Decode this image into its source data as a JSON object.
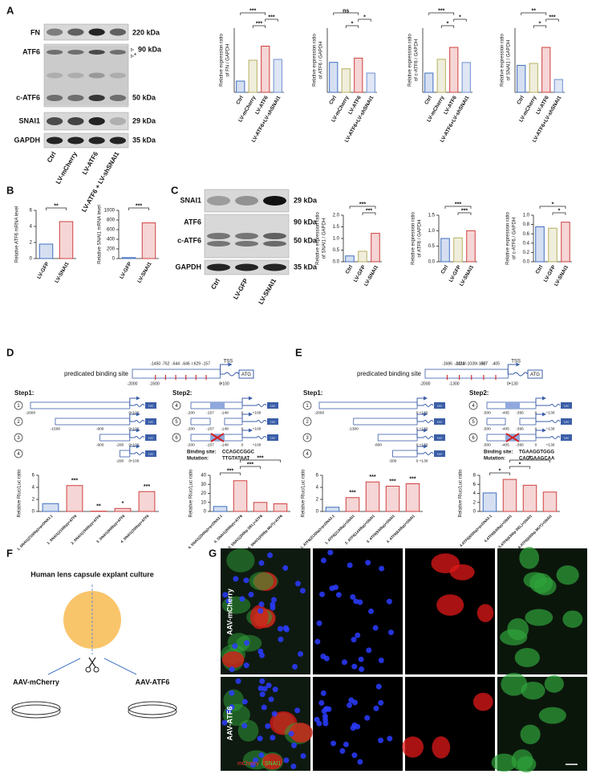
{
  "panel_labels": [
    "A",
    "B",
    "C",
    "D",
    "E",
    "F",
    "G"
  ],
  "blot_A": {
    "proteins": [
      "FN",
      "ATF6",
      "c-ATF6",
      "SNAI1",
      "GAPDH"
    ],
    "sizes": [
      "220 kDa",
      "90 kDa",
      "50 kDa",
      "29 kDa",
      "35 kDa"
    ],
    "markers": [
      "▹",
      "▹*"
    ],
    "lanes": [
      "Ctrl",
      "LV-mCherry",
      "LV-ATF6",
      "LV-ATF6 + LV-shSNAI1"
    ]
  },
  "blot_C": {
    "proteins": [
      "SNAI1",
      "ATF6",
      "c-ATF6",
      "GAPDH"
    ],
    "sizes": [
      "29 kDa",
      "90 kDa",
      "50 kDa",
      "35 kDa"
    ],
    "lanes": [
      "Ctrl",
      "LV-GFP",
      "LV-SNAI1"
    ]
  },
  "charts": [
    {
      "type": "bar",
      "ylabel": [
        "Relative expression ratio",
        "of FN / GAPDH"
      ],
      "categories": [
        "Ctrl",
        "LV-mCherry",
        "LV-ATF6",
        "LV-ATF6+LV-shSNAI1"
      ],
      "values": [
        0.28,
        0.8,
        1.15,
        0.82
      ],
      "colors": [
        "#3f6fbf",
        "#b8b060",
        "#d04040",
        "#6f8fcf"
      ],
      "ylim": [
        0,
        1.6
      ],
      "brackets": [
        {
          "between": [
            1,
            2
          ],
          "label": "***"
        },
        {
          "between": [
            2,
            3
          ],
          "label": "***"
        },
        {
          "between": [
            0,
            2
          ],
          "label": "***"
        }
      ]
    },
    {
      "type": "bar",
      "ylabel": [
        "Relative expression ratio",
        "of ATF6 / GAPDH"
      ],
      "categories": [
        "Ctrl",
        "LV-mCherry",
        "LV-ATF6",
        "LV-ATF6+LV-shSNAI1"
      ],
      "values": [
        0.28,
        0.22,
        0.32,
        0.18
      ],
      "colors": [
        "#3f6fbf",
        "#b8b060",
        "#d04040",
        "#6f8fcf"
      ],
      "ylim": [
        0,
        0.6
      ],
      "brackets": [
        {
          "between": [
            1,
            2
          ],
          "label": "*"
        },
        {
          "between": [
            2,
            3
          ],
          "label": "*"
        },
        {
          "between": [
            0,
            2
          ],
          "label": "ns"
        }
      ]
    },
    {
      "type": "bar",
      "ylabel": [
        "Relative expression ratio",
        "of c-ATF6 / GAPDH"
      ],
      "categories": [
        "Ctrl",
        "LV-mCherry",
        "LV-ATF6",
        "LV-ATF6+LV-shSNAI1"
      ],
      "values": [
        0.42,
        0.72,
        0.98,
        0.65
      ],
      "colors": [
        "#3f6fbf",
        "#b8b060",
        "#d04040",
        "#6f8fcf"
      ],
      "ylim": [
        0,
        1.4
      ],
      "brackets": [
        {
          "between": [
            1,
            2
          ],
          "label": "*"
        },
        {
          "between": [
            2,
            3
          ],
          "label": "*"
        },
        {
          "between": [
            0,
            2
          ],
          "label": "***"
        }
      ]
    },
    {
      "type": "bar",
      "ylabel": [
        "Relative expression ratio",
        "of SNAI1 / GAPDH"
      ],
      "categories": [
        "Ctrl",
        "LV-mCherry",
        "LV-ATF6",
        "LV-ATF6+LV-shSNAI1"
      ],
      "values": [
        0.42,
        0.45,
        0.7,
        0.2
      ],
      "colors": [
        "#3f6fbf",
        "#b8b060",
        "#d04040",
        "#6f8fcf"
      ],
      "ylim": [
        0,
        1.0
      ],
      "brackets": [
        {
          "between": [
            1,
            2
          ],
          "label": "*"
        },
        {
          "between": [
            2,
            3
          ],
          "label": "***"
        },
        {
          "between": [
            0,
            2
          ],
          "label": "**"
        }
      ]
    },
    {
      "type": "bar",
      "ylabel": [
        "Relative ATF6 mRNA level"
      ],
      "categories": [
        "LV-GFP",
        "LV-SNAI1"
      ],
      "values": [
        1.8,
        4.6
      ],
      "colors": [
        "#3f6fbf",
        "#d04040"
      ],
      "ylim": [
        0,
        6
      ],
      "yticks": [
        0,
        2,
        4,
        6
      ],
      "brackets": [
        {
          "between": [
            0,
            1
          ],
          "label": "**"
        }
      ]
    },
    {
      "type": "bar",
      "ylabel": [
        "Relative SNAI1 mRNA level"
      ],
      "categories": [
        "LV-GFP",
        "LV-SNAI1"
      ],
      "values": [
        20,
        740
      ],
      "colors": [
        "#3f6fbf",
        "#d04040"
      ],
      "ylim": [
        0,
        1000
      ],
      "yticks": [
        0,
        200,
        400,
        600,
        800,
        1000
      ],
      "brackets": [
        {
          "between": [
            0,
            1
          ],
          "label": "***"
        }
      ]
    },
    {
      "type": "bar",
      "ylabel": [
        "Relative expression ratio",
        "of SNAI1 / GAPDH"
      ],
      "categories": [
        "Ctrl",
        "LV-GFP",
        "LV-SNAI1"
      ],
      "values": [
        0.25,
        0.45,
        1.22
      ],
      "colors": [
        "#3f6fbf",
        "#b8b060",
        "#d04040"
      ],
      "ylim": [
        0,
        2
      ],
      "yticks": [
        {
          "value": 0,
          "label": "0.0"
        },
        0.5,
        {
          "value": 1,
          "label": "1.0"
        },
        1.5,
        {
          "value": 2,
          "label": "2.0"
        }
      ],
      "brackets": [
        {
          "between": [
            1,
            2
          ],
          "label": "***"
        },
        {
          "between": [
            0,
            2
          ],
          "label": "***"
        }
      ]
    },
    {
      "type": "bar",
      "ylabel": [
        "Relative expression ratio",
        "of ATF6 / GAPDH"
      ],
      "categories": [
        "Ctrl",
        "LV-GFP",
        "LV-SNAI1"
      ],
      "values": [
        0.75,
        0.77,
        1.0
      ],
      "colors": [
        "#3f6fbf",
        "#b8b060",
        "#d04040"
      ],
      "ylim": [
        0,
        1.5
      ],
      "yticks": [
        {
          "value": 0,
          "label": "0.0"
        },
        0.5,
        {
          "value": 1,
          "label": "1.0"
        },
        1.5
      ],
      "brackets": [
        {
          "between": [
            1,
            2
          ],
          "label": "***"
        },
        {
          "between": [
            0,
            2
          ],
          "label": "***"
        }
      ]
    },
    {
      "type": "bar",
      "ylabel": [
        "Relative expression ratio",
        "of c-ATF6 / GAPDH"
      ],
      "categories": [
        "Ctrl",
        "LV-GFP",
        "LV-SNAI1"
      ],
      "values": [
        0.75,
        0.72,
        0.85
      ],
      "colors": [
        "#3f6fbf",
        "#b8b060",
        "#d04040"
      ],
      "ylim": [
        0,
        1
      ],
      "yticks": [
        {
          "value": 0,
          "label": "0.0"
        },
        0.2,
        0.4,
        0.6,
        0.8,
        {
          "value": 1,
          "label": "1.0"
        }
      ],
      "brackets": [
        {
          "between": [
            1,
            2
          ],
          "label": "*"
        },
        {
          "between": [
            0,
            2
          ],
          "label": "*"
        }
      ]
    },
    {
      "type": "bar",
      "ylabel": [
        "Relative Rluc/Luc ratio"
      ],
      "categories": [
        "1. SNAI1(2100bp)+pcDNA3.1",
        "1. SNAI1(2100bp)+ATF6",
        "2. SNAI1(1500bp)+ATF6",
        "3. SNAI1(600bp)+ATF6",
        "4. SNAI1(200bp)+ATF6"
      ],
      "values": [
        1.3,
        4.3,
        0.05,
        0.5,
        3.3
      ],
      "annotations": [
        null,
        "***",
        "**",
        "*",
        "***"
      ],
      "colors": [
        "#3f6fbf",
        "#d04040",
        "#d04040",
        "#d04040",
        "#d04040"
      ],
      "ylim": [
        0,
        6
      ],
      "yticks": [
        0,
        2,
        4,
        6
      ]
    },
    {
      "type": "bar",
      "ylabel": [
        "Relative Rluc/Luc ratio"
      ],
      "categories": [
        "4. SNAI1(200bp)+pcDNA3.1",
        "4. SNAI1(200bp)+ATF6",
        "5. SNAI1(200bp DEL)+ATF6",
        "6. SNAI1(200bp MUT)+ATF6"
      ],
      "values": [
        5.5,
        34,
        10,
        8.5
      ],
      "colors": [
        "#3f6fbf",
        "#d04040",
        "#d04040",
        "#d04040"
      ],
      "ylim": [
        0,
        40
      ],
      "yticks": [
        0,
        10,
        20,
        30,
        40
      ],
      "brackets": [
        {
          "between": [
            0,
            1
          ],
          "label": "***"
        },
        {
          "between": [
            1,
            2
          ],
          "label": "***"
        },
        {
          "between": [
            1,
            3
          ],
          "label": "***"
        }
      ]
    },
    {
      "type": "bar",
      "ylabel": [
        "Relative Rluc/Luc ratio"
      ],
      "categories": [
        "1. ATF6(2130bp)+pcDNA3.1",
        "1. ATF6(2130bp)+SNAI1",
        "2. ATF6(1430bp)+SNAI1",
        "3. ATF6(930bp)+SNAI1",
        "4. ATF6(630bp)+SNAI1"
      ],
      "values": [
        0.7,
        2.3,
        4.9,
        4.2,
        4.6
      ],
      "annotations": [
        null,
        "***",
        "***",
        "***",
        "***"
      ],
      "colors": [
        "#3f6fbf",
        "#d04040",
        "#d04040",
        "#d04040",
        "#d04040"
      ],
      "ylim": [
        0,
        6
      ],
      "yticks": [
        0,
        2,
        4,
        6
      ]
    },
    {
      "type": "bar",
      "ylabel": [
        "Relative Rluc/Luc ratio"
      ],
      "categories": [
        "4.ATF6(630bp)+pcDNA3.1",
        "4.ATF6(630bp)+SNAI1",
        "5.ATF6(630bp DEL)+SNAI1",
        "6.ATF6(630bp MUT)+SNAI1"
      ],
      "values": [
        4.1,
        7.1,
        5.8,
        4.3
      ],
      "colors": [
        "#3f6fbf",
        "#d04040",
        "#d04040",
        "#d04040"
      ],
      "ylim": [
        0,
        8
      ],
      "yticks": [
        0,
        2,
        4,
        6,
        8
      ],
      "brackets": [
        {
          "between": [
            0,
            1
          ],
          "label": "*"
        },
        {
          "between": [
            1,
            2
          ],
          "label": "*"
        },
        {
          "between": [
            1,
            3
          ],
          "label": "*"
        }
      ]
    }
  ],
  "promoter_D": {
    "title": "predicated binding site",
    "sites": [
      "-1450",
      "-762",
      "-644",
      "-646",
      "/-629",
      "-157"
    ],
    "tss": "TSS",
    "atg": "ATG",
    "axis": [
      "-2000",
      "-1500",
      "0",
      "+100"
    ],
    "step1": "Step1:",
    "step2": "Step2:",
    "luc": "Luc",
    "step1_constructs": [
      {
        "number": "1",
        "labels": [
          "-2000",
          "0",
          "+100"
        ]
      },
      {
        "number": "2",
        "labels": [
          "-1500",
          "-600",
          "0",
          "+100"
        ]
      },
      {
        "number": "3",
        "labels": [
          "-600",
          "-200",
          "0",
          "+100"
        ]
      },
      {
        "number": "4",
        "labels": [
          "-200",
          "0",
          "+100"
        ]
      }
    ],
    "step2_constructs": [
      {
        "number": "4",
        "labels": [
          "-200",
          "-157",
          "-148",
          "0",
          "+100"
        ]
      },
      {
        "number": "5",
        "labels": [
          "-200",
          "-157",
          "-148",
          "0",
          "+100"
        ]
      },
      {
        "number": "6",
        "labels": [
          "-200",
          "-157",
          "-148",
          "0",
          "+100"
        ]
      }
    ],
    "binding_site_label": "Binding site:",
    "binding_site": "CCAGCCGGC",
    "mutation_label": "Mutation:",
    "mutation": "TTGTATAAT"
  },
  "promoter_E": {
    "title": "predicated binding site",
    "sites": [
      "-1686",
      "-1424",
      "-1113/-1039/-1027",
      "-567",
      "-405"
    ],
    "tss": "TSS",
    "atg": "ATG",
    "axis": [
      "-2000",
      "-1300",
      "0",
      "+130"
    ],
    "step1": "Step1:",
    "step2": "Step2:",
    "luc": "Luc",
    "step1_constructs": [
      {
        "number": "1",
        "labels": [
          "-2000",
          "0",
          "+130"
        ]
      },
      {
        "number": "2",
        "labels": [
          "-1300",
          "0",
          "+130"
        ]
      },
      {
        "number": "3",
        "labels": [
          "-800",
          "0",
          "+130"
        ]
      },
      {
        "number": "4",
        "labels": [
          "-500",
          "0",
          "+130"
        ]
      }
    ],
    "step2_constructs": [
      {
        "number": "4",
        "labels": [
          "-500",
          "-405",
          "-395",
          "0",
          "+130"
        ]
      },
      {
        "number": "5",
        "labels": [
          "-500",
          "-405",
          "-395",
          "0",
          "+130"
        ]
      },
      {
        "number": "6",
        "labels": [
          "-500",
          "-405",
          "-395",
          "0",
          "+130"
        ]
      }
    ],
    "binding_site_label": "Binding site:",
    "binding_site": "TGAAGGTGGG",
    "mutation_label": "Mutation:",
    "mutation": "CAGGAAGCAA"
  },
  "panel_F": {
    "title": "Human lens capsule explant culture",
    "left": "AAV-mCherry",
    "right": "AAV-ATF6"
  },
  "panel_G": {
    "rows": [
      "AAV-mCherry",
      "AAV-ATF6"
    ],
    "legend": [
      "mCherry",
      "/ SNAI1"
    ]
  }
}
